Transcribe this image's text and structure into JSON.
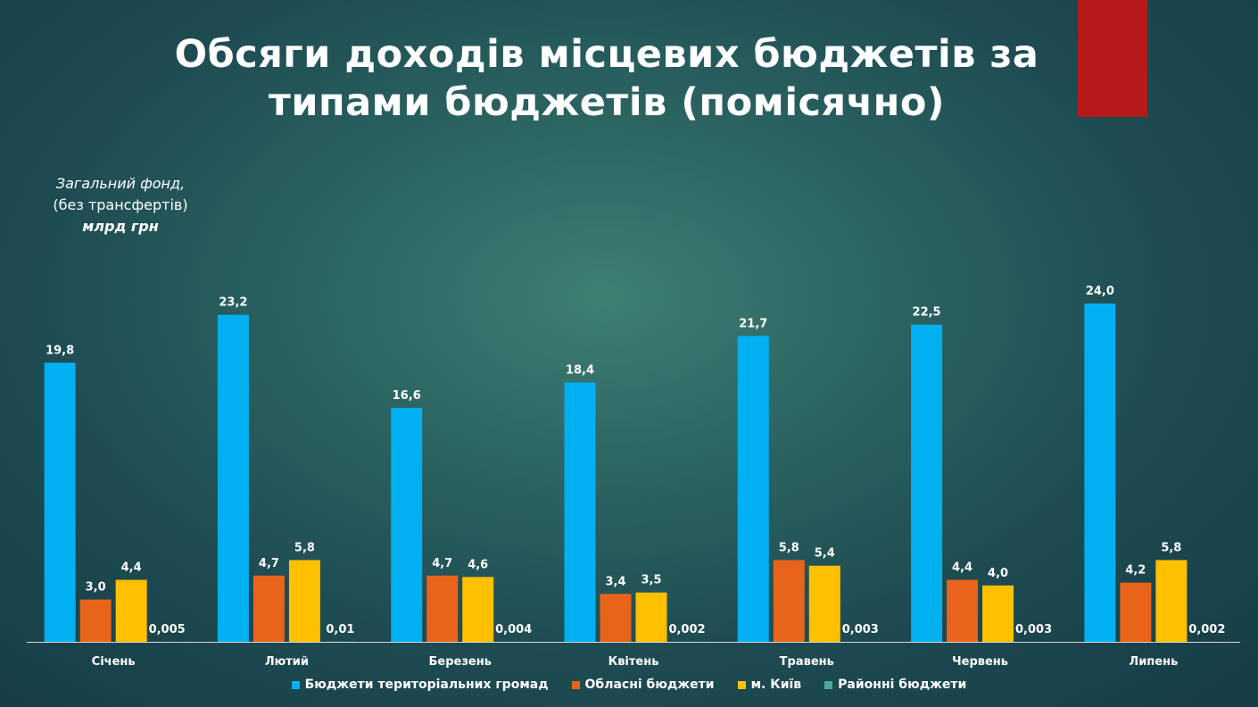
{
  "title_line1": "Обсяги доходів місцевих бюджетів за",
  "title_line2": "типами бюджетів (помісячно)",
  "unit": {
    "line1": "Загальний фонд,",
    "line2": "(без трансфертів)",
    "line3": "млрд грн"
  },
  "accent_color": "#b5191a",
  "chart_data": {
    "type": "bar",
    "categories": [
      "Січень",
      "Лютий",
      "Березень",
      "Квітень",
      "Травень",
      "Червень",
      "Липень"
    ],
    "series": [
      {
        "name": "Бюджети територіальних громад",
        "color": "#00b0f0",
        "values": [
          19.8,
          23.2,
          16.6,
          18.4,
          21.7,
          22.5,
          24.0
        ],
        "labels": [
          "19,8",
          "23,2",
          "16,6",
          "18,4",
          "21,7",
          "22,5",
          "24,0"
        ]
      },
      {
        "name": "Обласні бюджети",
        "color": "#e8641b",
        "values": [
          3.0,
          4.7,
          4.7,
          3.4,
          5.8,
          4.4,
          4.2
        ],
        "labels": [
          "3,0",
          "4,7",
          "4,7",
          "3,4",
          "5,8",
          "4,4",
          "4,2"
        ]
      },
      {
        "name": "м. Київ",
        "color": "#ffc000",
        "values": [
          4.4,
          5.8,
          4.6,
          3.5,
          5.4,
          4.0,
          5.8
        ],
        "labels": [
          "4,4",
          "5,8",
          "4,6",
          "3,5",
          "5,4",
          "4,0",
          "5,8"
        ]
      },
      {
        "name": "Районні бюджети",
        "color": "#4aa89a",
        "values": [
          0.005,
          0.01,
          0.004,
          0.002,
          0.003,
          0.003,
          0.002
        ],
        "labels": [
          "0,005",
          "0,01",
          "0,004",
          "0,002",
          "0,003",
          "0,003",
          "0,002"
        ]
      }
    ],
    "ylim": [
      0,
      24
    ],
    "grid": false,
    "legend_position": "bottom"
  }
}
